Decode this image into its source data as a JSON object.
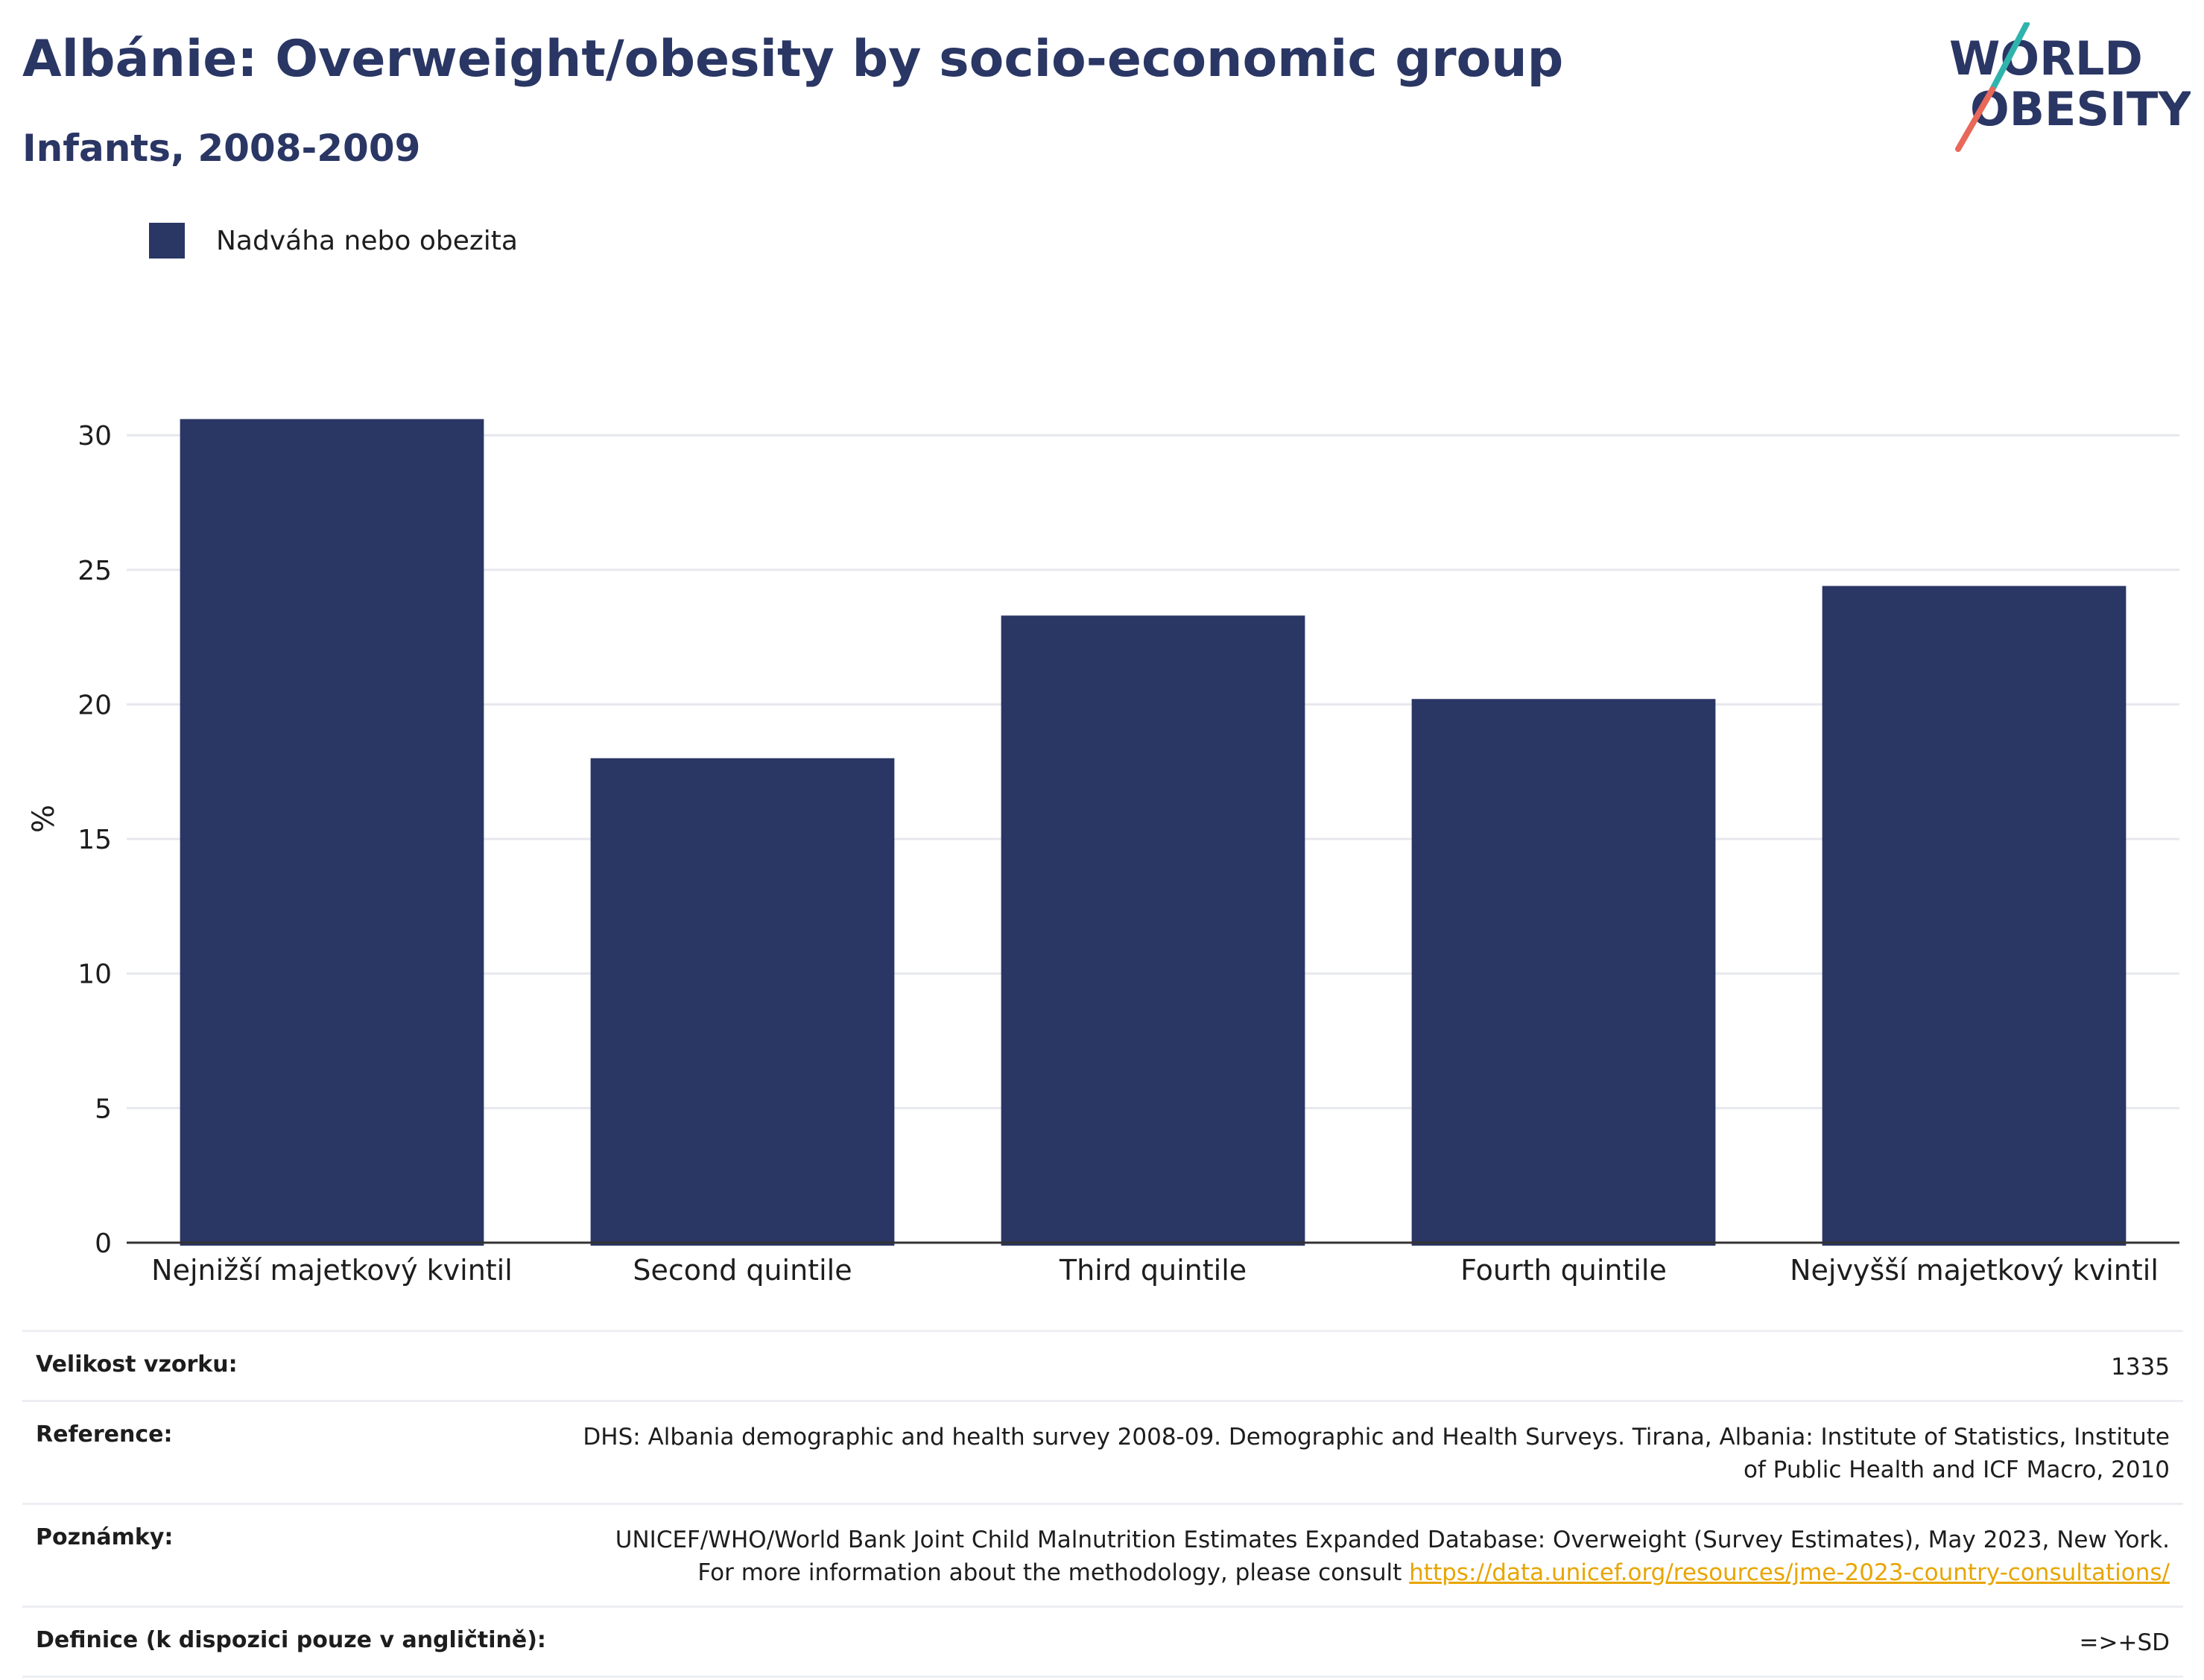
{
  "header": {
    "title": "Albánie: Overweight/obesity by socio-economic group",
    "subtitle": "Infants, 2008-2009"
  },
  "logo": {
    "line1": "WORLD",
    "line2": "OBESITY",
    "colors": {
      "text": "#2a3664",
      "slash_top": "#2fb4ad",
      "slash_bottom": "#e8685a"
    }
  },
  "colors": {
    "bar": "#2a3664",
    "grid": "#e6e8ee",
    "axis": "#333333"
  },
  "chart_data": {
    "type": "bar",
    "title": "Albánie: Overweight/obesity by socio-economic group",
    "subtitle": "Infants, 2008-2009",
    "categories": [
      "Nejnižší majetkový kvintil",
      "Second quintile",
      "Third quintile",
      "Fourth quintile",
      "Nejvyšší majetkový kvintil"
    ],
    "series": [
      {
        "name": "Nadváha nebo obezita",
        "values": [
          30.6,
          18.0,
          23.3,
          20.2,
          24.4
        ]
      }
    ],
    "xlabel": "",
    "ylabel": "%",
    "ylim": [
      0,
      30
    ],
    "yticks": [
      0,
      5,
      10,
      15,
      20,
      25,
      30
    ],
    "grid": true,
    "legend": "top-left"
  },
  "info": {
    "sample_label": "Velikost vzorku:",
    "sample_value": "1335",
    "reference_label": "Reference:",
    "reference_value": "DHS: Albania demographic and health survey 2008-09. Demographic and Health Surveys. Tirana, Albania: Institute of Statistics, Institute of Public Health and ICF Macro, 2010",
    "notes_label": "Poznámky:",
    "notes_text": "UNICEF/WHO/World Bank Joint Child Malnutrition Estimates Expanded Database: Overweight (Survey Estimates), May 2023, New York. For more information about the methodology, please consult ",
    "notes_link": "https://data.unicef.org/resources/jme-2023-country-consultations/",
    "definition_label": "Definice (k dispozici pouze v angličtině):",
    "definition_value": "=>+SD"
  }
}
